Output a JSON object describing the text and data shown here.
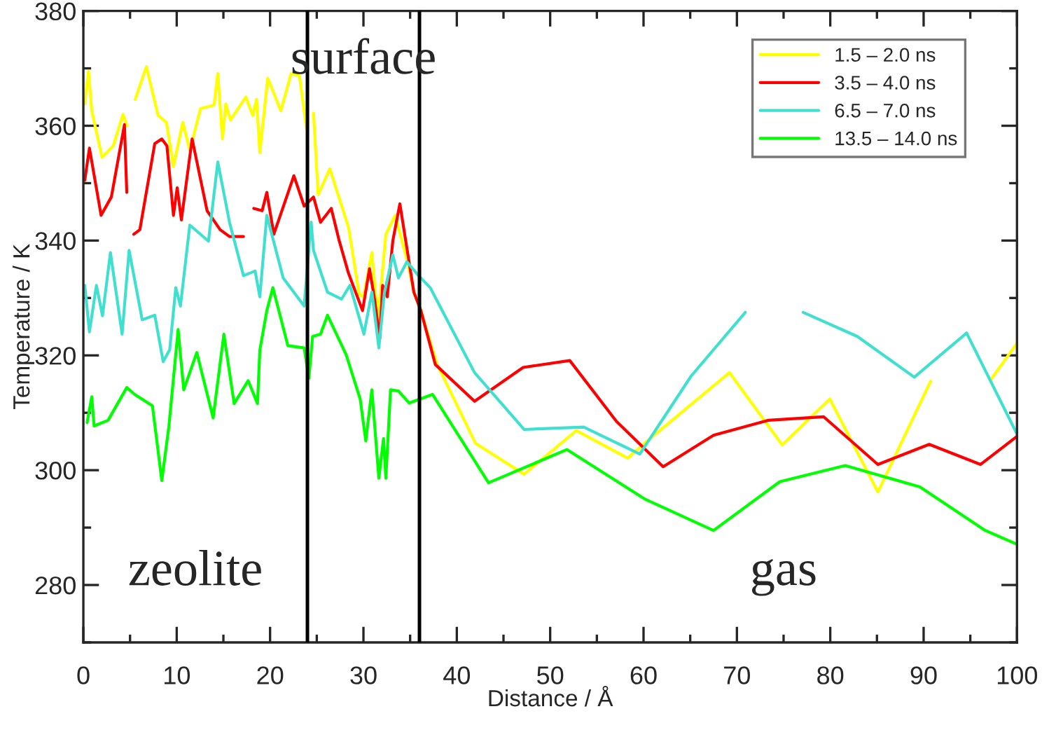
{
  "chart_data": {
    "type": "line",
    "xlabel": "Distance / Å",
    "ylabel": "Temperature / K",
    "xlim": [
      0,
      100
    ],
    "xticks": [
      0,
      10,
      20,
      30,
      40,
      50,
      60,
      70,
      80,
      90,
      100
    ],
    "ylim": [
      270,
      380
    ],
    "yticks": [
      280,
      300,
      320,
      340,
      360,
      380
    ],
    "grid": false,
    "legend": "top right",
    "line_style": "solid",
    "marker": "none",
    "ref_lines": [
      {
        "axis": "x",
        "value": 24,
        "color": "#000000"
      },
      {
        "axis": "x",
        "value": 36,
        "color": "#000000"
      }
    ],
    "annotations": [
      "zeolite",
      "surface",
      "gas"
    ],
    "series": [
      {
        "name": "1.5 – 2.0 ns",
        "color": "#ffff00",
        "x": [
          0.15,
          0.55,
          0.9,
          2,
          3.2,
          4.25,
          4.65,
          5,
          5.55,
          6.75,
          8,
          8.9,
          9.65,
          10.65,
          11.4,
          12.55,
          14,
          14.4,
          14.9,
          15.25,
          15.75,
          17.4,
          18.15,
          18.55,
          18.9,
          19.75,
          21.15,
          22.25,
          23.15,
          23.9,
          24.3,
          24.65,
          25.15,
          26.4,
          28.4,
          29.55,
          30,
          30.9,
          31.55,
          32.4,
          33.4,
          34.65,
          35.4,
          36.15,
          37.9,
          42,
          47.2,
          52.8,
          58.3,
          60.4,
          69.2,
          74.85,
          79.95,
          85.1,
          90.75,
          94,
          97.2,
          100
        ],
        "values": [
          363.8,
          369.5,
          362.6,
          354.5,
          356.5,
          362,
          360,
          null,
          364.6,
          370.3,
          361.8,
          360.6,
          352.9,
          360.6,
          355.7,
          363,
          363.6,
          369.1,
          357.7,
          363.8,
          361,
          365,
          361.8,
          364.6,
          355.3,
          368.3,
          362.6,
          369.1,
          368.7,
          359.4,
          null,
          362.2,
          348,
          352.5,
          342.3,
          330.6,
          330.2,
          337.9,
          326.2,
          341.1,
          344.4,
          336.7,
          331,
          327.8,
          318.4,
          304.7,
          299.3,
          306.9,
          302.1,
          305.1,
          317,
          304.4,
          312.4,
          296.2,
          315.5,
          null,
          315.8,
          322.1
        ]
      },
      {
        "name": "3.5 – 4.0 ns",
        "color": "#ff0000",
        "x": [
          0.15,
          0.65,
          1.9,
          3,
          4.4,
          4.65,
          5,
          5.4,
          6.05,
          7.65,
          8.4,
          8.95,
          9.65,
          10.05,
          10.5,
          11.65,
          13.25,
          14.65,
          15.65,
          17.15,
          17.7,
          18.25,
          19.15,
          19.65,
          20.4,
          22.55,
          23.65,
          24.65,
          25.4,
          26.55,
          27.4,
          28.4,
          29.9,
          30.65,
          31.15,
          31.75,
          32.05,
          32.55,
          33.15,
          33.9,
          35.4,
          36.15,
          37.7,
          41.9,
          47.1,
          52.1,
          57.1,
          62.1,
          67.5,
          73.4,
          79.3,
          85.1,
          90.6,
          96.1,
          100
        ],
        "values": [
          350.5,
          356.1,
          344.4,
          347.6,
          360.2,
          348.4,
          null,
          341.1,
          341.9,
          356.9,
          357.7,
          356.5,
          344.4,
          349.2,
          343.6,
          357.7,
          345.2,
          341.9,
          340.7,
          340.7,
          null,
          345.6,
          345.2,
          348.4,
          341.1,
          351.3,
          346,
          347.6,
          343.2,
          345.6,
          340,
          334.3,
          327.8,
          335.1,
          330.2,
          322.9,
          332.2,
          330.2,
          340,
          346.4,
          331,
          327.8,
          318.4,
          312,
          317.9,
          319.1,
          308.5,
          300.6,
          306.1,
          308.7,
          309.3,
          301,
          304.5,
          301,
          305.9
        ]
      },
      {
        "name": "6.5 – 7.0 ns",
        "color": "#40e0d0",
        "x": [
          0.15,
          0.65,
          1.4,
          2.05,
          2.9,
          4.15,
          4.9,
          6.3,
          7.65,
          8.55,
          9.25,
          9.9,
          10.4,
          11.4,
          13.4,
          14.4,
          15.65,
          17.15,
          18.4,
          18.9,
          19.65,
          21.4,
          23.65,
          24.4,
          24.65,
          26.15,
          27.65,
          28.55,
          30.05,
          30.9,
          31.65,
          32.25,
          33.15,
          33.75,
          34.65,
          35.9,
          37.15,
          41.9,
          47.2,
          53.6,
          59.6,
          65.1,
          70.9,
          74,
          77.1,
          82.9,
          89,
          94.6,
          100
        ],
        "values": [
          332.2,
          324.1,
          332.2,
          326.9,
          337.9,
          323.7,
          338.3,
          326.2,
          327,
          318.9,
          321,
          331.8,
          328.6,
          342.7,
          339.9,
          353.7,
          343.2,
          333.9,
          334.7,
          330.2,
          344.4,
          333.5,
          328.6,
          343.2,
          338.3,
          331,
          329.8,
          332.2,
          323.7,
          331,
          321.3,
          331,
          337.5,
          333.5,
          336.3,
          333.9,
          331.8,
          317,
          307.1,
          307.5,
          302.8,
          316.4,
          327.5,
          null,
          327.5,
          323.3,
          316.2,
          323.9,
          306.3
        ]
      },
      {
        "name": "13.5 – 14.0 ns",
        "color": "#00ff00",
        "x": [
          0.4,
          0.9,
          1.15,
          2.65,
          4.65,
          5.5,
          7.4,
          8.4,
          9.15,
          10.15,
          10.75,
          12.15,
          13.9,
          15.05,
          16.15,
          17.65,
          18.65,
          18.9,
          19.65,
          20.3,
          21.9,
          23.65,
          24.15,
          24.55,
          25.4,
          26.15,
          28.15,
          29.65,
          30.25,
          30.9,
          31.65,
          32.15,
          32.4,
          32.9,
          33.75,
          34.9,
          37.4,
          43.4,
          51.8,
          60.1,
          67.5,
          74.6,
          81.6,
          89.6,
          96.6,
          100
        ],
        "values": [
          308.3,
          312.8,
          307.7,
          308.7,
          314.4,
          313.2,
          311.2,
          298.2,
          307.5,
          324.5,
          314,
          320.5,
          309.1,
          323.7,
          311.6,
          315.6,
          311.6,
          320.9,
          327.8,
          331.8,
          321.7,
          321.3,
          316,
          323.3,
          323.7,
          327,
          320.1,
          312.4,
          305.1,
          314,
          298.6,
          305.5,
          298.6,
          314,
          313.8,
          311.7,
          313.2,
          297.8,
          303.6,
          295,
          289.5,
          298,
          300.8,
          297.1,
          289.5,
          287.1
        ]
      }
    ]
  }
}
